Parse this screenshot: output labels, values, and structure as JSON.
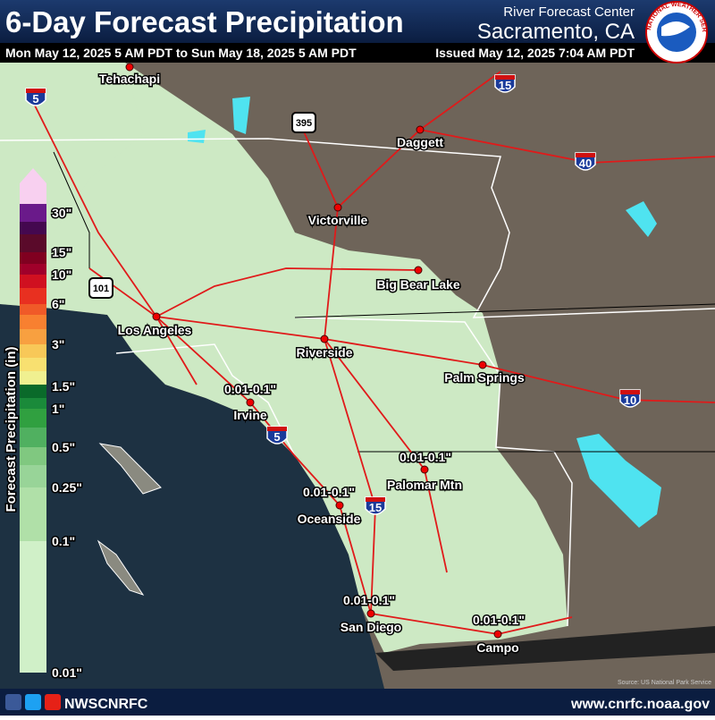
{
  "header": {
    "title": "6-Day Forecast Precipitation",
    "subtitle": "Mon May 12, 2025 5 AM PDT to Sun May 18, 2025 5 AM PDT",
    "center_line1": "River Forecast Center",
    "center_line2": "Sacramento, CA",
    "issued": "Issued May 12, 2025 7:04 AM PDT"
  },
  "logo": {
    "text": "NATIONAL WEATHER SERVICE"
  },
  "legend": {
    "title": "Forecast Precipitation (in)",
    "labels": [
      "30\"",
      "15\"",
      "10\"",
      "6\"",
      "3\"",
      "1.5\"",
      "1\"",
      "0.5\"",
      "0.25\"",
      "0.1\"",
      "0.01\""
    ]
  },
  "map": {
    "cities": [
      "Tehachapi",
      "Daggett",
      "Victorville",
      "Big Bear Lake",
      "Los Angeles",
      "Riverside",
      "Palm Springs",
      "Irvine",
      "Palomar Mtn",
      "Oceanside",
      "San Diego",
      "Campo"
    ],
    "amount_labels": [
      "0.01-0.1\"",
      "0.01-0.1\"",
      "0.01-0.1\"",
      "0.01-0.1\"",
      "0.01-0.1\""
    ],
    "interstates": [
      "5",
      "15",
      "40",
      "10",
      "5",
      "15"
    ],
    "us_routes": [
      "395",
      "101"
    ],
    "source": "Source: US National Park Service"
  },
  "footer": {
    "social": "NWSCNRFC",
    "website": "www.cnrfc.noaa.gov"
  }
}
